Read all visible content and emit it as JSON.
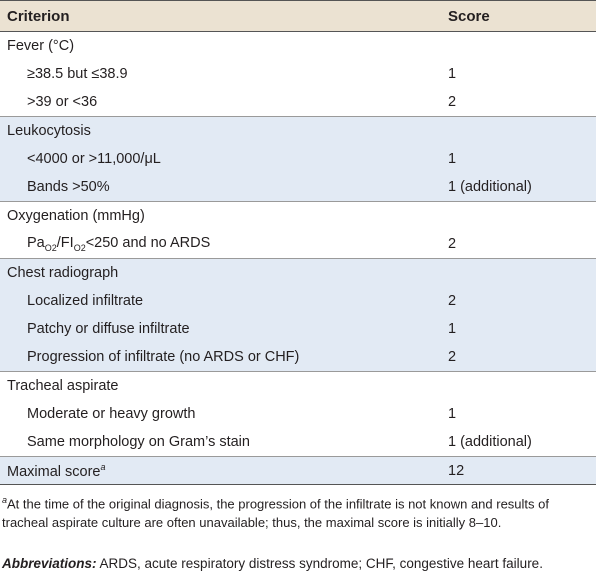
{
  "table": {
    "header": [
      "Criterion",
      "Score"
    ],
    "sections": [
      {
        "title": "Fever (°C)",
        "rows": [
          {
            "criterion": "≥38.5 but ≤38.9",
            "score": "1"
          },
          {
            "criterion": ">39 or <36",
            "score": "2"
          }
        ]
      },
      {
        "title": "Leukocytosis",
        "rows": [
          {
            "criterion": "<4000 or >11,000/μL",
            "score": "1"
          },
          {
            "criterion": "Bands >50%",
            "score": "1 (additional)"
          }
        ]
      },
      {
        "title": "Oxygenation (mmHg)",
        "rows": [
          {
            "criterion": [
              {
                "text": "Pa"
              },
              {
                "text": "O2",
                "sub": true
              },
              {
                "text": "/FI"
              },
              {
                "text": "O2",
                "sub": true
              },
              {
                "text": "<250 and no ARDS"
              }
            ],
            "score": "2"
          }
        ]
      },
      {
        "title": "Chest radiograph",
        "rows": [
          {
            "criterion": "Localized infiltrate",
            "score": "2"
          },
          {
            "criterion": "Patchy or diffuse infiltrate",
            "score": "1"
          },
          {
            "criterion": "Progression of infiltrate (no ARDS or CHF)",
            "score": "2"
          }
        ]
      },
      {
        "title": "Tracheal aspirate",
        "rows": [
          {
            "criterion": "Moderate or heavy growth",
            "score": "1"
          },
          {
            "criterion": "Same morphology on Gram’s stain",
            "score": "1 (additional)"
          }
        ]
      }
    ],
    "total": {
      "label": "Maximal score",
      "mark": "a",
      "score": "12"
    }
  },
  "footnote": {
    "mark": "a",
    "text": "At the time of the original diagnosis, the progression of the infiltrate is not known and results of tracheal aspirate culture are often unavailable; thus, the maximal score is initially 8–10."
  },
  "abbreviations": {
    "label": "Abbreviations:",
    "text": " ARDS, acute respiratory distress syndrome; CHF, congestive heart failure."
  }
}
